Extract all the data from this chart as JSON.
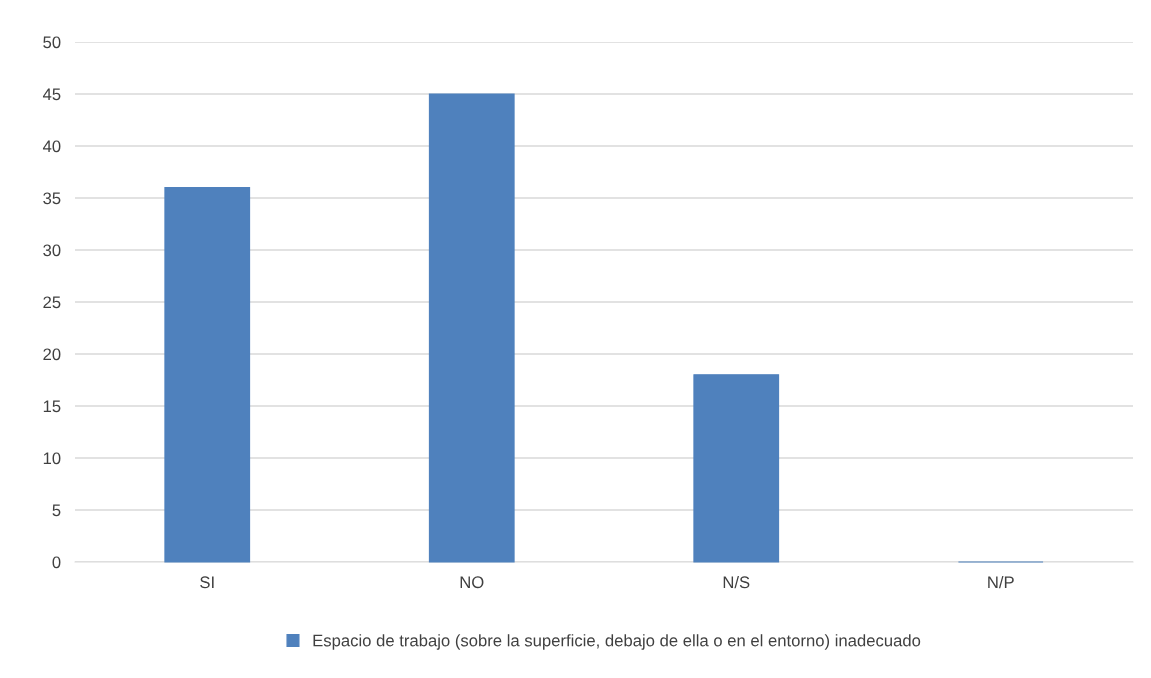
{
  "chart_data": {
    "type": "bar",
    "categories": [
      "SI",
      "NO",
      "N/S",
      "N/P"
    ],
    "series": [
      {
        "name": "Espacio de trabajo (sobre la superficie, debajo de ella o en el entorno) inadecuado",
        "color": "#4f81bd",
        "values": [
          36,
          45,
          18,
          0
        ]
      }
    ],
    "ylim": [
      0,
      50
    ],
    "yticks": [
      0,
      5,
      10,
      15,
      20,
      25,
      30,
      35,
      40,
      45,
      50
    ],
    "grid": "y",
    "legend": "bottom"
  }
}
